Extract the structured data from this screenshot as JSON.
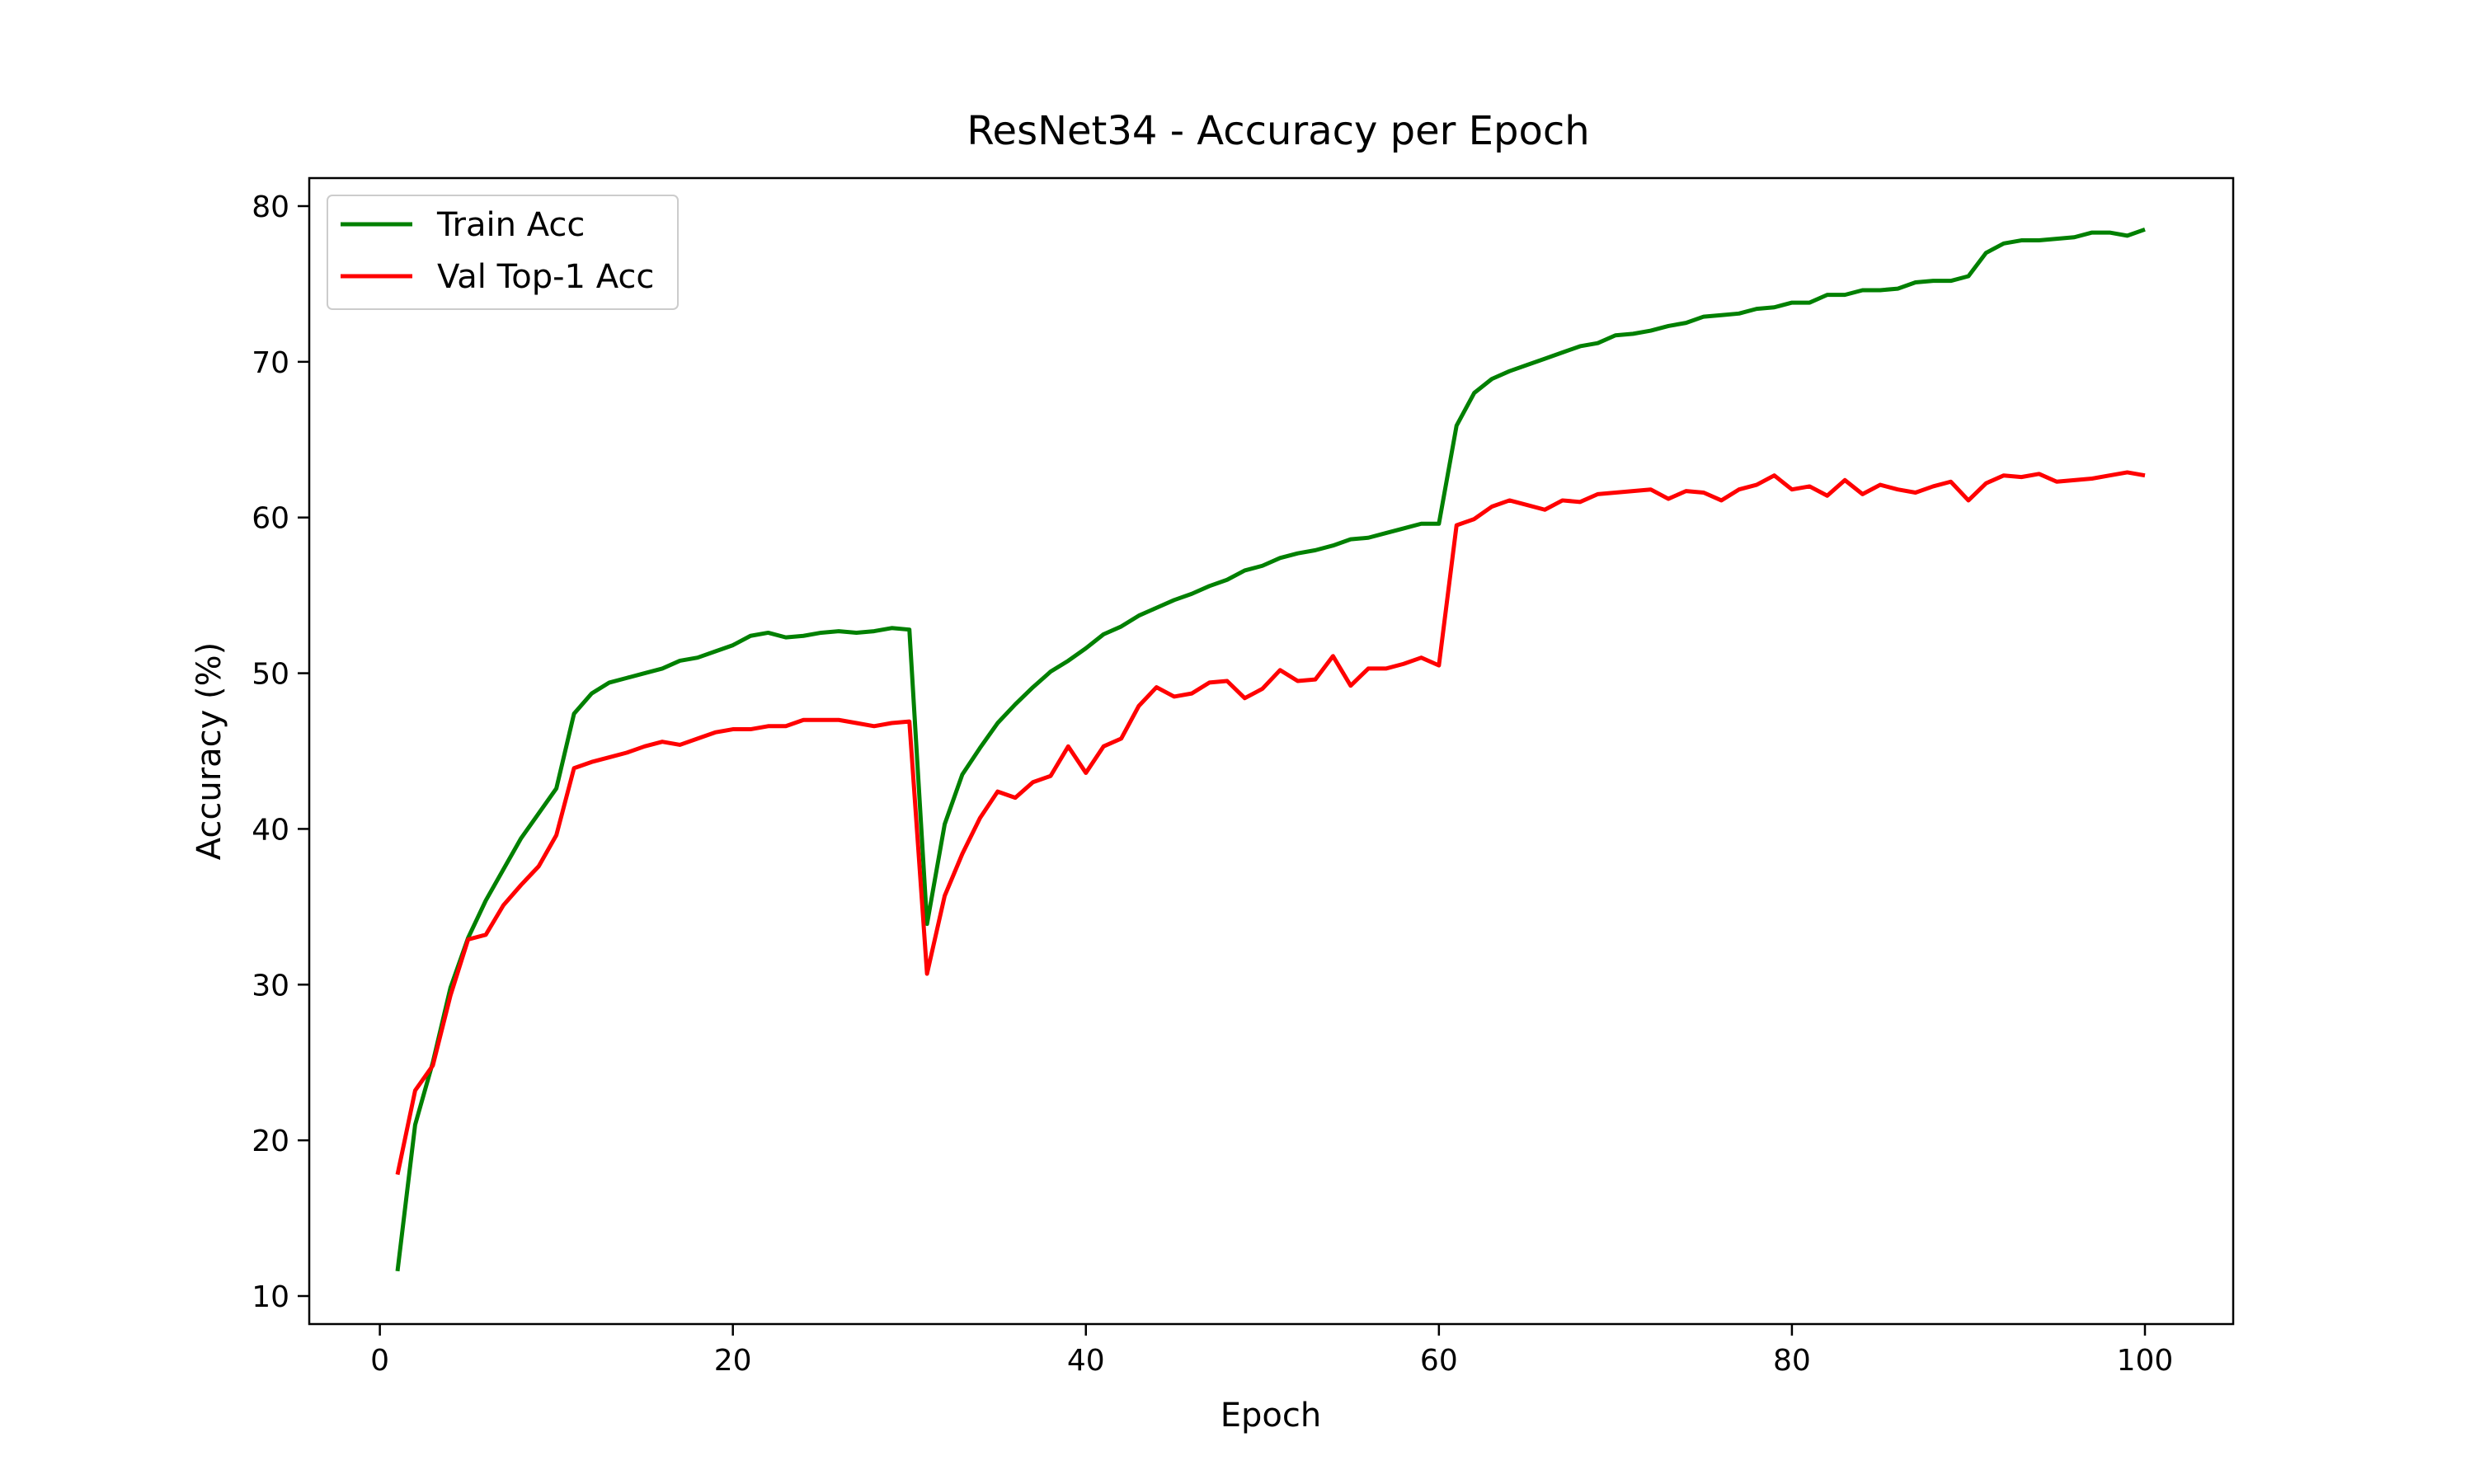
{
  "chart_data": {
    "type": "line",
    "title": "ResNet34 - Accuracy per Epoch",
    "xlabel": "Epoch",
    "ylabel": "Accuracy (%)",
    "xlim": [
      -4,
      105
    ],
    "ylim": [
      8.2,
      81.8
    ],
    "xticks": [
      0,
      20,
      40,
      60,
      80,
      100
    ],
    "yticks": [
      10,
      20,
      30,
      40,
      50,
      60,
      70,
      80
    ],
    "grid": false,
    "legend_position": "upper-left",
    "x": [
      1,
      2,
      3,
      4,
      5,
      6,
      7,
      8,
      9,
      10,
      11,
      12,
      13,
      14,
      15,
      16,
      17,
      18,
      19,
      20,
      21,
      22,
      23,
      24,
      25,
      26,
      27,
      28,
      29,
      30,
      31,
      32,
      33,
      34,
      35,
      36,
      37,
      38,
      39,
      40,
      41,
      42,
      43,
      44,
      45,
      46,
      47,
      48,
      49,
      50,
      51,
      52,
      53,
      54,
      55,
      56,
      57,
      58,
      59,
      60,
      61,
      62,
      63,
      64,
      65,
      66,
      67,
      68,
      69,
      70,
      71,
      72,
      73,
      74,
      75,
      76,
      77,
      78,
      79,
      80,
      81,
      82,
      83,
      84,
      85,
      86,
      87,
      88,
      89,
      90,
      91,
      92,
      93,
      94,
      95,
      96,
      97,
      98,
      99,
      100
    ],
    "series": [
      {
        "name": "Train Acc",
        "color": "#008000",
        "values": [
          11.6,
          21.0,
          25.0,
          29.8,
          33.0,
          35.4,
          37.4,
          39.4,
          41.0,
          42.6,
          47.4,
          48.7,
          49.4,
          49.7,
          50.0,
          50.3,
          50.8,
          51.0,
          51.4,
          51.8,
          52.4,
          52.6,
          52.3,
          52.4,
          52.6,
          52.7,
          52.6,
          52.7,
          52.9,
          52.8,
          33.9,
          40.3,
          43.5,
          45.2,
          46.8,
          48.0,
          49.1,
          50.1,
          50.8,
          51.6,
          52.5,
          53.0,
          53.7,
          54.2,
          54.7,
          55.1,
          55.6,
          56.0,
          56.6,
          56.9,
          57.4,
          57.7,
          57.9,
          58.2,
          58.6,
          58.7,
          59.0,
          59.3,
          59.6,
          59.6,
          65.9,
          68.0,
          68.9,
          69.4,
          69.8,
          70.2,
          70.6,
          71.0,
          71.2,
          71.7,
          71.8,
          72.0,
          72.3,
          72.5,
          72.9,
          73.0,
          73.1,
          73.4,
          73.5,
          73.8,
          73.8,
          74.3,
          74.3,
          74.6,
          74.6,
          74.7,
          75.1,
          75.2,
          75.2,
          75.5,
          77.0,
          77.6,
          77.8,
          77.8,
          77.9,
          78.0,
          78.3,
          78.3,
          78.1,
          78.5
        ]
      },
      {
        "name": "Val Top-1 Acc",
        "color": "#ff0000",
        "values": [
          17.8,
          23.2,
          24.8,
          29.3,
          32.9,
          33.2,
          35.1,
          36.4,
          37.6,
          39.6,
          43.9,
          44.3,
          44.6,
          44.9,
          45.3,
          45.6,
          45.4,
          45.8,
          46.2,
          46.4,
          46.4,
          46.6,
          46.6,
          47.0,
          47.0,
          47.0,
          46.8,
          46.6,
          46.8,
          46.9,
          30.7,
          35.7,
          38.4,
          40.7,
          42.4,
          42.0,
          43.0,
          43.4,
          45.3,
          43.6,
          45.3,
          45.8,
          47.9,
          49.1,
          48.5,
          48.7,
          49.4,
          49.5,
          48.4,
          49.0,
          50.2,
          49.5,
          49.6,
          51.1,
          49.2,
          50.3,
          50.3,
          50.6,
          51.0,
          50.5,
          59.5,
          59.9,
          60.7,
          61.1,
          60.8,
          60.5,
          61.1,
          61.0,
          61.5,
          61.6,
          61.7,
          61.8,
          61.2,
          61.7,
          61.6,
          61.1,
          61.8,
          62.1,
          62.7,
          61.8,
          62.0,
          61.4,
          62.4,
          61.5,
          62.1,
          61.8,
          61.6,
          62.0,
          62.3,
          61.1,
          62.2,
          62.7,
          62.6,
          62.8,
          62.3,
          62.4,
          62.5,
          62.7,
          62.9,
          62.7
        ]
      }
    ]
  }
}
